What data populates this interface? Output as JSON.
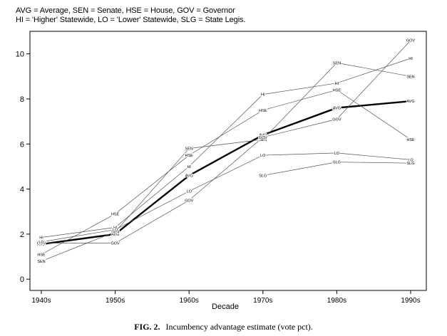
{
  "legend_lines": [
    "AVG = Average, SEN = Senate, HSE = House, GOV = Governor",
    "HI = 'Higher' Statewide, LO = 'Lower' Statewide, SLG = State Legis."
  ],
  "caption": {
    "label": "FIG. 2.",
    "text": "Incumbency advantage estimate (vote pct)."
  },
  "chart_data": {
    "type": "line",
    "title": "",
    "xlabel": "Decade",
    "ylabel": "",
    "categories": [
      "1940s",
      "1950s",
      "1960s",
      "1970s",
      "1980s",
      "1990s"
    ],
    "ylim": [
      -0.5,
      11
    ],
    "yticks": [
      0,
      2,
      4,
      6,
      8,
      10
    ],
    "grid": false,
    "series": [
      {
        "name": "AVG",
        "values": [
          1.55,
          2.0,
          4.6,
          6.4,
          7.6,
          7.9
        ],
        "emphasis": true
      },
      {
        "name": "SEN",
        "values": [
          0.8,
          2.1,
          5.8,
          6.2,
          9.6,
          9.0
        ]
      },
      {
        "name": "HSE",
        "values": [
          1.1,
          2.9,
          5.5,
          7.5,
          8.4,
          6.2
        ]
      },
      {
        "name": "GOV",
        "values": [
          1.6,
          1.6,
          3.5,
          6.3,
          7.1,
          10.6
        ]
      },
      {
        "name": "HI",
        "values": [
          1.85,
          2.3,
          5.0,
          8.2,
          8.7,
          9.8
        ]
      },
      {
        "name": "LO",
        "values": [
          1.65,
          2.2,
          3.9,
          5.5,
          5.6,
          5.3
        ]
      },
      {
        "name": "SLG",
        "values": [
          null,
          null,
          null,
          4.6,
          5.2,
          5.15
        ]
      }
    ]
  }
}
